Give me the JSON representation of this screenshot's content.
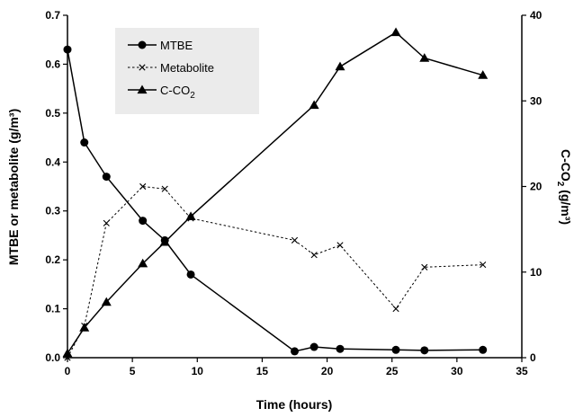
{
  "chart_data": {
    "type": "line",
    "xlabel": "Time (hours)",
    "ylabel_left": "MTBE or metabolite (g/m³)",
    "ylabel_right_main": "C-CO",
    "ylabel_right_sub": "2",
    "ylabel_right_tail": " (g/m³)",
    "xlim": [
      0,
      35
    ],
    "ylim_left": [
      0,
      0.7
    ],
    "ylim_right": [
      0,
      40
    ],
    "x_ticks": [
      "0",
      "5",
      "10",
      "15",
      "20",
      "25",
      "30",
      "35"
    ],
    "y_left_ticks": [
      "0.0",
      "0.1",
      "0.2",
      "0.3",
      "0.4",
      "0.5",
      "0.6",
      "0.7"
    ],
    "y_right_ticks": [
      "0",
      "10",
      "20",
      "30",
      "40"
    ],
    "legend_position": "top-left",
    "legend_background": "#ebebeb",
    "series": [
      {
        "name": "MTBE",
        "axis": "left",
        "marker": "circle",
        "dash": "solid",
        "x": [
          0,
          1.3,
          3,
          5.8,
          7.5,
          9.5,
          17.5,
          19,
          21,
          25.3,
          27.5,
          32
        ],
        "y": [
          0.63,
          0.44,
          0.37,
          0.28,
          0.24,
          0.17,
          0.013,
          0.022,
          0.018,
          0.016,
          0.015,
          0.016
        ]
      },
      {
        "name": "Metabolite",
        "axis": "left",
        "marker": "x",
        "dash": "dotted",
        "x": [
          0,
          1.3,
          3,
          5.8,
          7.5,
          9.5,
          17.5,
          19,
          21,
          25.3,
          27.5,
          32
        ],
        "y": [
          0.0,
          0.065,
          0.275,
          0.35,
          0.345,
          0.285,
          0.24,
          0.21,
          0.23,
          0.1,
          0.185,
          0.19
        ]
      },
      {
        "name": "C-CO",
        "name_sub": "2",
        "axis": "right",
        "marker": "triangle",
        "dash": "solid",
        "x": [
          0,
          1.3,
          3,
          5.8,
          7.5,
          9.5,
          19,
          21,
          25.3,
          27.5,
          32
        ],
        "y": [
          0.5,
          3.5,
          6.5,
          11,
          13.5,
          16.5,
          29.5,
          34,
          38,
          35,
          33
        ]
      }
    ]
  }
}
